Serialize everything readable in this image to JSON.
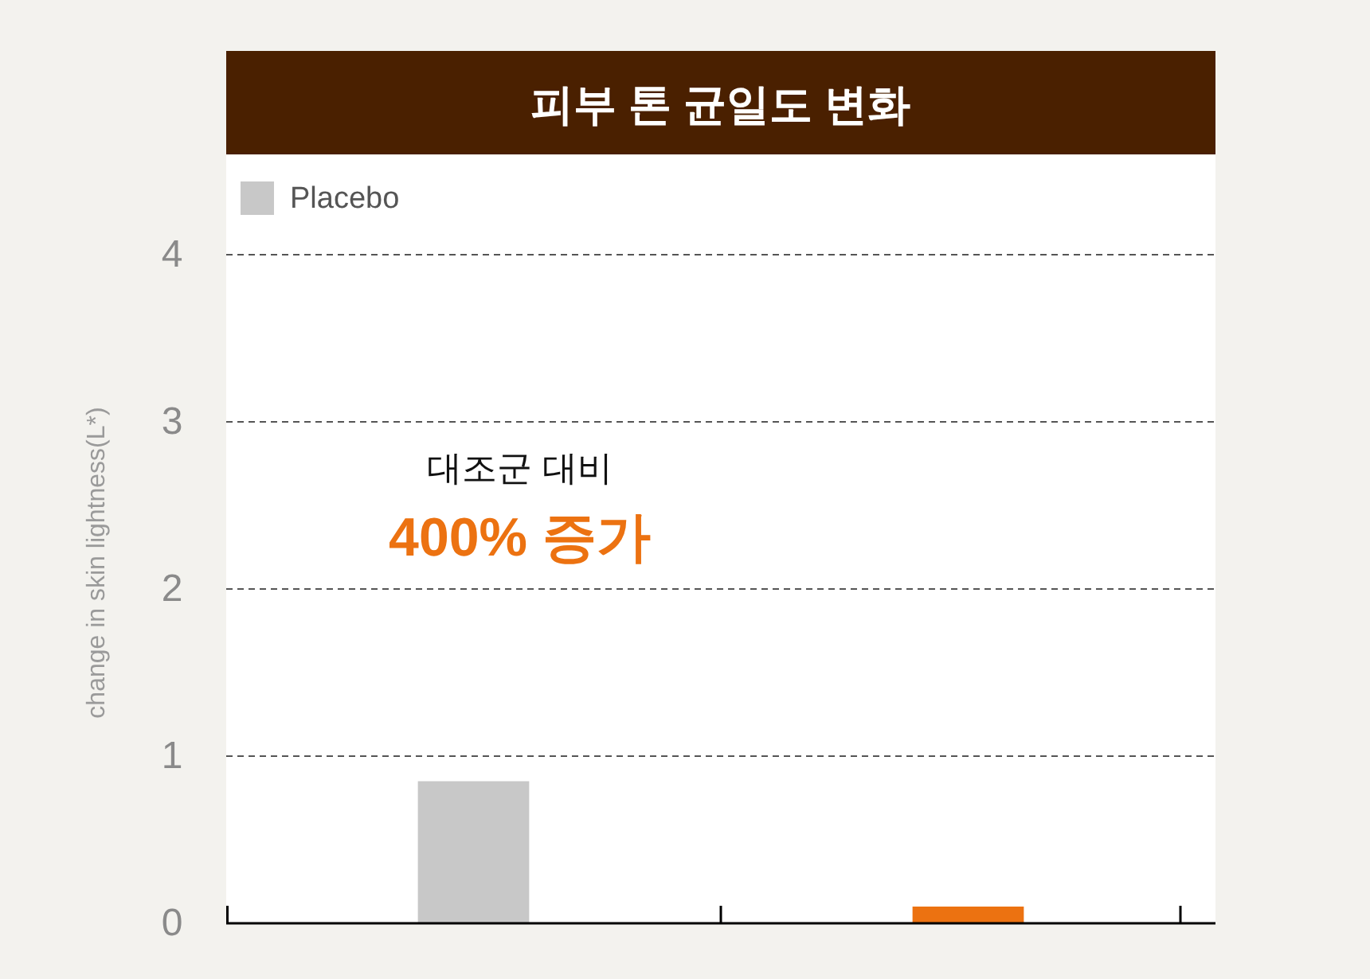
{
  "chart_data": {
    "type": "bar",
    "title": "피부 톤 균일도 변화",
    "ylabel": "change in skin lightness(L*)",
    "categories": [
      null,
      null
    ],
    "series": [
      {
        "name": "Placebo",
        "color": "#c8c8c8",
        "values": [
          0.85,
          null
        ]
      },
      {
        "color": "#ec7211",
        "values": [
          null,
          0.1
        ]
      }
    ],
    "ylim": [
      0,
      4.6
    ],
    "yticks": [
      0,
      1,
      2,
      3,
      4
    ],
    "grid": "y",
    "legend": "top left",
    "annotations": [
      "대조군 대비",
      "400% 증가"
    ]
  }
}
